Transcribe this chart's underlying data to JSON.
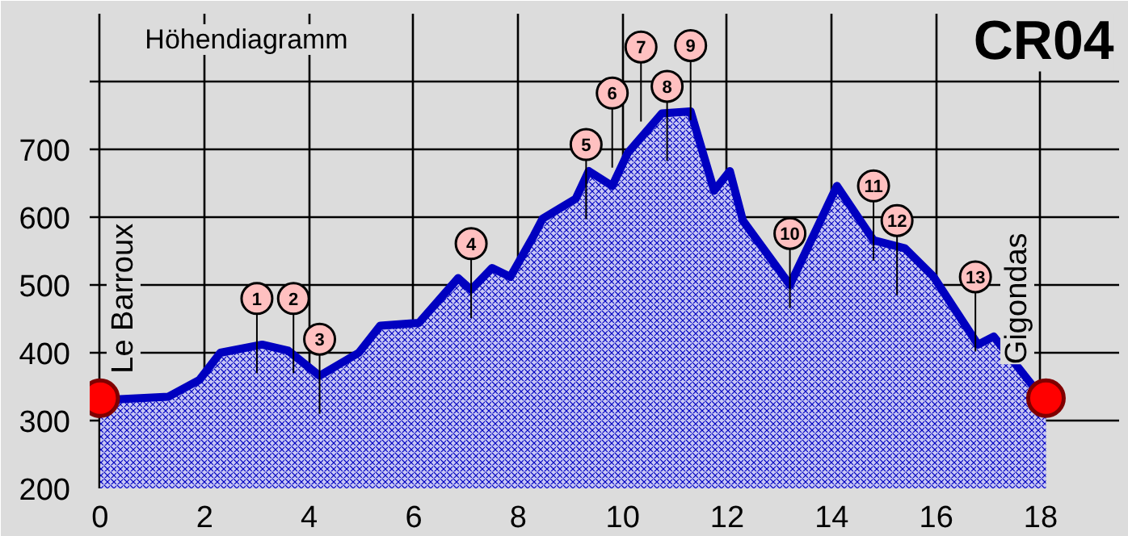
{
  "chart_data": {
    "type": "area",
    "title": "CR04",
    "subtitle": "Höhendiagramm",
    "x": [
      0,
      1.3,
      1.9,
      2.3,
      3.1,
      3.6,
      4.2,
      4.95,
      5.36,
      6.1,
      6.85,
      7.1,
      7.5,
      7.85,
      8.3,
      8.47,
      9.1,
      9.35,
      9.8,
      10.1,
      10.75,
      11.3,
      11.75,
      12.05,
      12.3,
      13.2,
      14.1,
      14.8,
      15.4,
      15.95,
      16.8,
      17.1,
      17.9,
      18.1
    ],
    "series": [
      {
        "color": "#0000c0",
        "values": [
          330,
          335,
          360,
          400,
          412,
          403,
          366,
          400,
          440,
          444,
          510,
          493,
          525,
          512,
          573,
          598,
          627,
          668,
          646,
          695,
          753,
          756,
          639,
          668,
          595,
          500,
          646,
          566,
          554,
          512,
          412,
          424,
          346,
          333
        ]
      },
      {
        "type": "scatter",
        "color": "#ff0000",
        "x": [
          0,
          18.1
        ],
        "values": [
          333,
          333
        ]
      }
    ],
    "annotations": [
      {
        "text": "1",
        "x": 3.0,
        "y": 480
      },
      {
        "text": "2",
        "x": 3.7,
        "y": 480
      },
      {
        "text": "3",
        "x": 4.2,
        "y": 420
      },
      {
        "text": "4",
        "x": 7.1,
        "y": 561
      },
      {
        "text": "5",
        "x": 9.3,
        "y": 707
      },
      {
        "text": "6",
        "x": 9.8,
        "y": 783
      },
      {
        "text": "7",
        "x": 10.35,
        "y": 851
      },
      {
        "text": "8",
        "x": 10.85,
        "y": 793
      },
      {
        "text": "9",
        "x": 11.3,
        "y": 853
      },
      {
        "text": "10",
        "x": 13.2,
        "y": 576
      },
      {
        "text": "11",
        "x": 14.8,
        "y": 646
      },
      {
        "text": "12",
        "x": 15.25,
        "y": 595
      },
      {
        "text": "13",
        "x": 16.75,
        "y": 512
      },
      "Le Barroux",
      "Gigondas"
    ],
    "xlim": [
      -0.2,
      19.5
    ],
    "ylim": [
      200,
      900
    ],
    "xticks": [
      0,
      2,
      4,
      6,
      8,
      10,
      12,
      14,
      16,
      18
    ],
    "yticks": [
      200,
      300,
      400,
      500,
      600,
      700,
      {
        "value": 800,
        "label": null
      }
    ],
    "grid": true
  }
}
